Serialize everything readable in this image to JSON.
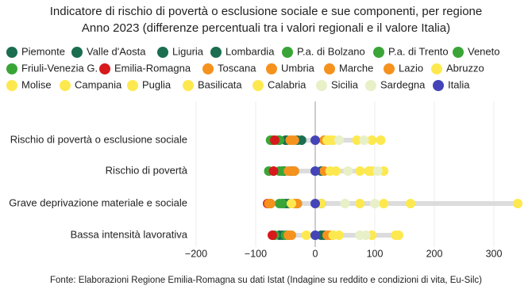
{
  "chart_data": {
    "type": "dot",
    "title": "Indicatore di rischio di povertà o esclusione sociale e sue componenti, per regione",
    "subtitle": "Anno 2023 (differenze percentuali tra i valori regionali e il valore Italia)",
    "source": "Fonte: Elaborazioni Regione Emilia-Romagna su dati Istat (Indagine su reddito e condizioni di vita, Eu-Silc)",
    "categories": [
      "Rischio di povertà o esclusione sociale",
      "Rischio di povertà",
      "Grave deprivazione materiale e sociale",
      "Bassa intensità lavorativa"
    ],
    "xlim": [
      -210,
      350
    ],
    "xticks": [
      {
        "value": -200,
        "label": "−200"
      },
      {
        "value": -100,
        "label": "−100"
      },
      0,
      100,
      200,
      300
    ],
    "grid": true,
    "series": [
      {
        "name": "Piemonte",
        "color": "#1b6e50",
        "values": [
          -23,
          -40,
          -50,
          10
        ]
      },
      {
        "name": "Valle d'Aosta",
        "color": "#1b6e50",
        "values": [
          -48,
          -52,
          -55,
          -55
        ]
      },
      {
        "name": "Liguria",
        "color": "#1b6e50",
        "values": [
          -30,
          10,
          10,
          15
        ]
      },
      {
        "name": "Lombardia",
        "color": "#1b6e50",
        "values": [
          -50,
          -55,
          -45,
          -60
        ]
      },
      {
        "name": "P.a. di Bolzano",
        "color": "#3aa537",
        "values": [
          -75,
          -60,
          -60,
          -70
        ]
      },
      {
        "name": "P.a. di Trento",
        "color": "#3aa537",
        "values": [
          -72,
          -78,
          -75,
          -68
        ]
      },
      {
        "name": "Veneto",
        "color": "#3aa537",
        "values": [
          -60,
          -55,
          -55,
          -50
        ]
      },
      {
        "name": "Friuli-Venezia G.",
        "color": "#3aa537",
        "values": [
          -62,
          -35,
          -30,
          -45
        ]
      },
      {
        "name": "Emilia-Romagna",
        "color": "#d7191c",
        "values": [
          -68,
          -70,
          -80,
          -72
        ]
      },
      {
        "name": "Toscana",
        "color": "#f5921e",
        "values": [
          -42,
          -45,
          -75,
          -40
        ]
      },
      {
        "name": "Umbria",
        "color": "#f5921e",
        "values": [
          -35,
          -38,
          -35,
          25
        ]
      },
      {
        "name": "Marche",
        "color": "#f5921e",
        "values": [
          -40,
          -35,
          -78,
          -45
        ]
      },
      {
        "name": "Lazio",
        "color": "#f5921e",
        "values": [
          15,
          15,
          -30,
          20
        ]
      },
      {
        "name": "Abruzzo",
        "color": "#fde94f",
        "values": [
          20,
          25,
          -40,
          30
        ]
      },
      {
        "name": "Molise",
        "color": "#fde94f",
        "values": [
          25,
          90,
          10,
          -15
        ]
      },
      {
        "name": "Campania",
        "color": "#fde94f",
        "values": [
          110,
          115,
          160,
          135
        ]
      },
      {
        "name": "Puglia",
        "color": "#fde94f",
        "values": [
          70,
          75,
          75,
          95
        ]
      },
      {
        "name": "Basilicata",
        "color": "#fde94f",
        "values": [
          30,
          35,
          115,
          40
        ]
      },
      {
        "name": "Calabria",
        "color": "#fde94f",
        "values": [
          95,
          95,
          340,
          140
        ]
      },
      {
        "name": "Sicilia",
        "color": "#e8f0c8",
        "values": [
          82,
          105,
          100,
          75
        ]
      },
      {
        "name": "Sardegna",
        "color": "#e8f0c8",
        "values": [
          40,
          55,
          50,
          85
        ]
      },
      {
        "name": "Italia",
        "color": "#4444b8",
        "values": [
          0,
          0,
          0,
          0
        ]
      }
    ]
  }
}
